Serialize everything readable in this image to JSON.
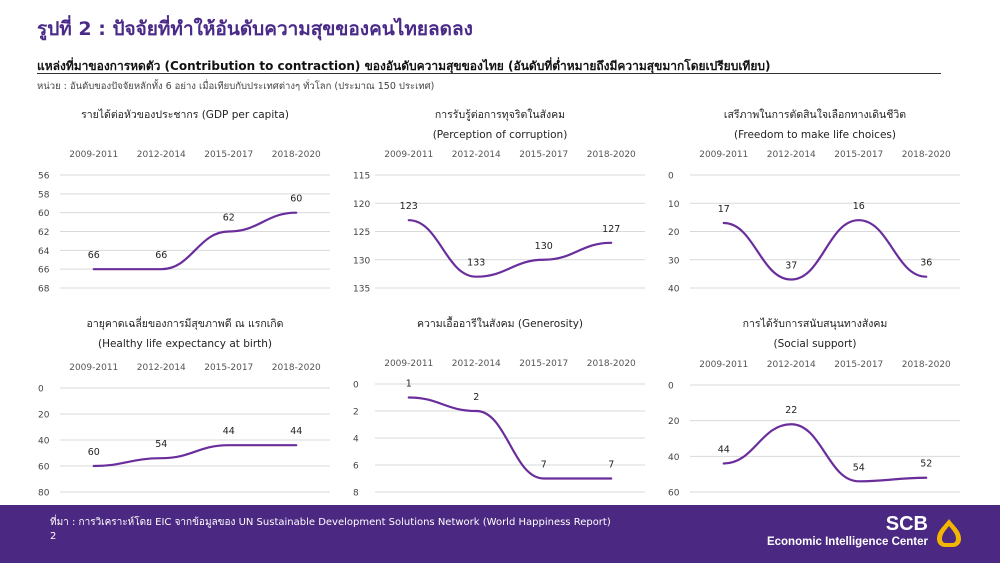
{
  "header": {
    "title": "รูปที่ 2 : ปัจจัยที่ทำให้อันดับความสุขของคนไทยลดลง",
    "subtitle": "แหล่งที่มาของการหดตัว (Contribution to contraction) ของอันดับความสุขของไทย (อันดับที่ต่ำหมายถึงมีความสุขมากโดยเปรียบเทียบ)",
    "unit_note": "หน่วย : อันดับของปัจจัยหลักทั้ง 6 อย่าง เมื่อเทียบกับประเทศต่างๆ ทั่วโลก (ประมาณ 150 ประเทศ)"
  },
  "footer": {
    "source": "ที่มา : การวิเคราะห์โดย EIC จากข้อมูลของ UN Sustainable Development Solutions Network (World Happiness Report)",
    "page_number": "2",
    "brand_name": "SCB",
    "brand_subtitle": "Economic Intelligence Center"
  },
  "colors": {
    "line": "#6a2e9c",
    "grid": "#d9d9d9",
    "title": "#4a2a88",
    "footer_bg": "#4b2882",
    "logo": "#f2b600"
  },
  "chart_data": [
    {
      "type": "line",
      "title": "รายได้ต่อหัวของประชากร (GDP per capita)",
      "subtitle": "",
      "categories": [
        "2009-2011",
        "2012-2014",
        "2015-2017",
        "2018-2020"
      ],
      "values": [
        66,
        66,
        62,
        60
      ],
      "y_ticks": [
        56,
        58,
        60,
        62,
        64,
        66,
        68
      ],
      "ylim": [
        56,
        68
      ],
      "y_inverted": true,
      "grid": true
    },
    {
      "type": "line",
      "title": "การรับรู้ต่อการทุจริตในสังคม",
      "subtitle": "(Perception of corruption)",
      "categories": [
        "2009-2011",
        "2012-2014",
        "2015-2017",
        "2018-2020"
      ],
      "values": [
        123,
        133,
        130,
        127
      ],
      "y_ticks": [
        115,
        120,
        125,
        130,
        135
      ],
      "ylim": [
        115,
        135
      ],
      "y_inverted": true,
      "grid": true
    },
    {
      "type": "line",
      "title": "เสรีภาพในการตัดสินใจเลือกทางเดินชีวิต",
      "subtitle": "(Freedom to make life choices)",
      "categories": [
        "2009-2011",
        "2012-2014",
        "2015-2017",
        "2018-2020"
      ],
      "values": [
        17,
        37,
        16,
        36
      ],
      "y_ticks": [
        0,
        10,
        20,
        30,
        40
      ],
      "ylim": [
        0,
        40
      ],
      "y_inverted": true,
      "grid": true
    },
    {
      "type": "line",
      "title": "อายุคาดเฉลี่ยของการมีสุขภาพดี ณ แรกเกิด",
      "subtitle": "(Healthy life expectancy at birth)",
      "categories": [
        "2009-2011",
        "2012-2014",
        "2015-2017",
        "2018-2020"
      ],
      "values": [
        60,
        54,
        44,
        44
      ],
      "y_ticks": [
        0,
        20,
        40,
        60,
        80
      ],
      "ylim": [
        0,
        80
      ],
      "y_inverted": true,
      "grid": true
    },
    {
      "type": "line",
      "title": "ความเอื้ออารีในสังคม (Generosity)",
      "subtitle": "",
      "categories": [
        "2009-2011",
        "2012-2014",
        "2015-2017",
        "2018-2020"
      ],
      "values": [
        1,
        2,
        7,
        7
      ],
      "y_ticks": [
        0,
        2,
        4,
        6,
        8
      ],
      "ylim": [
        0,
        8
      ],
      "y_inverted": true,
      "grid": true
    },
    {
      "type": "line",
      "title": "การได้รับการสนับสนุนทางสังคม",
      "subtitle": "(Social support)",
      "categories": [
        "2009-2011",
        "2012-2014",
        "2015-2017",
        "2018-2020"
      ],
      "values": [
        44,
        22,
        54,
        52
      ],
      "y_ticks": [
        0,
        20,
        40,
        60
      ],
      "ylim": [
        0,
        60
      ],
      "y_inverted": true,
      "grid": true
    }
  ]
}
